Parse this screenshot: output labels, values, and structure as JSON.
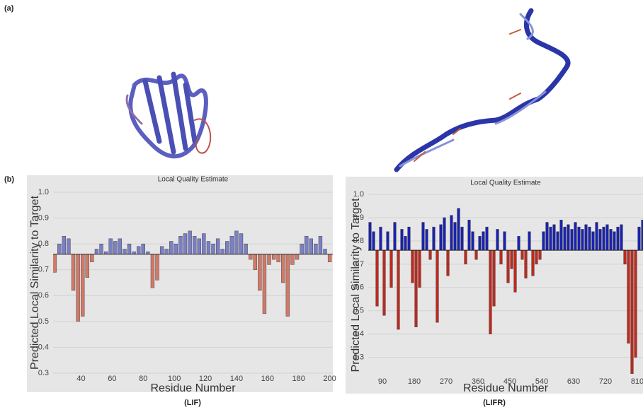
{
  "panel_labels": [
    "(a)",
    "(b)"
  ],
  "chart_data": [
    {
      "type": "bar",
      "title": "Local Quality Estimate",
      "xlabel": "Residue Number",
      "ylabel": "Predicted Local Similarity to Target",
      "caption": "(LIF)",
      "x": [
        23,
        26,
        29,
        32,
        35,
        38,
        41,
        44,
        47,
        50,
        53,
        56,
        59,
        62,
        65,
        68,
        71,
        74,
        77,
        80,
        83,
        86,
        89,
        92,
        95,
        98,
        101,
        104,
        107,
        110,
        113,
        116,
        119,
        122,
        125,
        128,
        131,
        134,
        137,
        140,
        143,
        146,
        149,
        152,
        155,
        158,
        161,
        164,
        167,
        170,
        173,
        176,
        179,
        182,
        185,
        188,
        191,
        194,
        197,
        200
      ],
      "values": [
        0.69,
        0.8,
        0.83,
        0.82,
        0.62,
        0.5,
        0.52,
        0.67,
        0.73,
        0.78,
        0.8,
        0.77,
        0.82,
        0.81,
        0.82,
        0.78,
        0.8,
        0.77,
        0.79,
        0.8,
        0.77,
        0.63,
        0.66,
        0.79,
        0.78,
        0.81,
        0.8,
        0.83,
        0.84,
        0.85,
        0.83,
        0.82,
        0.84,
        0.81,
        0.8,
        0.82,
        0.78,
        0.81,
        0.83,
        0.85,
        0.84,
        0.8,
        0.74,
        0.7,
        0.62,
        0.53,
        0.72,
        0.74,
        0.73,
        0.65,
        0.52,
        0.72,
        0.74,
        0.8,
        0.83,
        0.82,
        0.8,
        0.83,
        0.78,
        0.73
      ],
      "xlim": [
        22,
        202
      ],
      "ylim": [
        0.3,
        1.0
      ],
      "xticks": [
        40,
        60,
        80,
        100,
        120,
        140,
        160,
        180,
        200
      ],
      "yticks": [
        0.3,
        0.4,
        0.5,
        0.6,
        0.7,
        0.8,
        0.9,
        {
          "value": 1,
          "label": "1.0"
        }
      ],
      "baseline": 0.76,
      "color_above": "#7b7fc4",
      "color_below": "#d07a6a",
      "grid": true
    },
    {
      "type": "bar",
      "title": "Local Quality Estimate",
      "xlabel": "Residue Number",
      "ylabel": "Predicted Local Similarity to Target",
      "caption": "(LIFR)",
      "x": [
        55,
        65,
        75,
        85,
        95,
        105,
        115,
        125,
        135,
        145,
        155,
        165,
        175,
        185,
        195,
        205,
        215,
        225,
        235,
        245,
        255,
        265,
        275,
        285,
        295,
        305,
        315,
        325,
        335,
        345,
        355,
        365,
        375,
        385,
        395,
        405,
        415,
        425,
        435,
        445,
        455,
        465,
        475,
        485,
        495,
        505,
        515,
        525,
        535,
        545,
        555,
        565,
        575,
        585,
        595,
        605,
        615,
        625,
        635,
        645,
        655,
        665,
        675,
        685,
        695,
        705,
        715,
        725,
        735,
        745,
        755,
        765,
        775,
        785,
        795,
        805,
        815,
        825
      ],
      "values": [
        0.88,
        0.84,
        0.52,
        0.86,
        0.48,
        0.84,
        0.6,
        0.88,
        0.42,
        0.85,
        0.82,
        0.86,
        0.62,
        0.43,
        0.6,
        0.88,
        0.85,
        0.72,
        0.86,
        0.45,
        0.87,
        0.9,
        0.65,
        0.91,
        0.88,
        0.94,
        0.86,
        0.7,
        0.89,
        0.84,
        0.72,
        0.82,
        0.84,
        0.86,
        0.4,
        0.52,
        0.85,
        0.7,
        0.84,
        0.62,
        0.68,
        0.58,
        0.82,
        0.72,
        0.64,
        0.84,
        0.65,
        0.7,
        0.72,
        0.84,
        0.88,
        0.86,
        0.87,
        0.84,
        0.89,
        0.86,
        0.87,
        0.85,
        0.88,
        0.86,
        0.85,
        0.87,
        0.86,
        0.84,
        0.88,
        0.85,
        0.86,
        0.87,
        0.85,
        0.84,
        0.86,
        0.87,
        0.7,
        0.36,
        0.23,
        0.3,
        0.86,
        0.89
      ],
      "xlim": [
        50,
        826
      ],
      "ylim": [
        0.22,
        1.0
      ],
      "xticks": [
        90,
        180,
        270,
        360,
        450,
        540,
        630,
        720,
        810
      ],
      "yticks": [
        0.3,
        0.4,
        0.5,
        0.6,
        0.7,
        0.8,
        0.9,
        {
          "value": 1,
          "label": "1.0"
        }
      ],
      "baseline": 0.76,
      "color_above": "#1a22b0",
      "color_below": "#c0281c",
      "grid": true
    }
  ]
}
